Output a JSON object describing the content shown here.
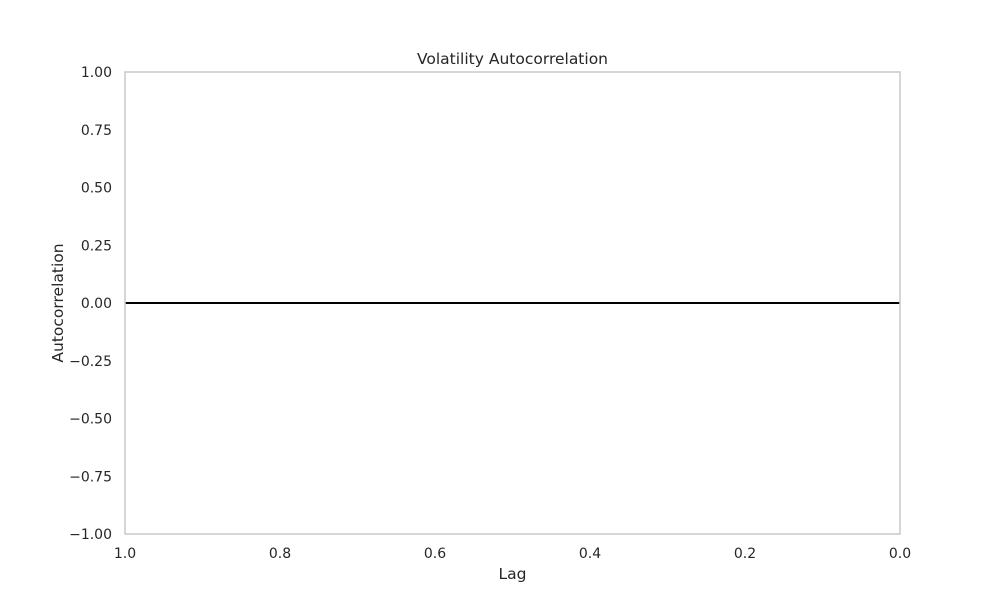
{
  "chart_data": {
    "type": "line",
    "title": "Volatility Autocorrelation",
    "xlabel": "Lag",
    "ylabel": "Autocorrelation",
    "xlim": [
      1.0,
      0.0
    ],
    "ylim": [
      -1.0,
      1.0
    ],
    "x_inverted": true,
    "x_ticks": [
      1.0,
      0.8,
      0.6,
      0.4,
      0.2,
      0.0
    ],
    "x_tick_labels": [
      "1.0",
      "0.8",
      "0.6",
      "0.4",
      "0.2",
      "0.0"
    ],
    "y_ticks": [
      1.0,
      0.75,
      0.5,
      0.25,
      0.0,
      -0.25,
      -0.5,
      -0.75,
      -1.0
    ],
    "y_tick_labels": [
      "1.00",
      "0.75",
      "0.50",
      "0.25",
      "0.00",
      "−0.25",
      "−0.50",
      "−0.75",
      "−1.00"
    ],
    "grid": false,
    "series": [],
    "reference_lines": [
      {
        "orientation": "horizontal",
        "y": 0.0,
        "color": "#000000"
      }
    ],
    "colors": {
      "frame": "#cccccc",
      "text": "#262626",
      "reference_line": "#000000",
      "background": "#ffffff"
    }
  }
}
